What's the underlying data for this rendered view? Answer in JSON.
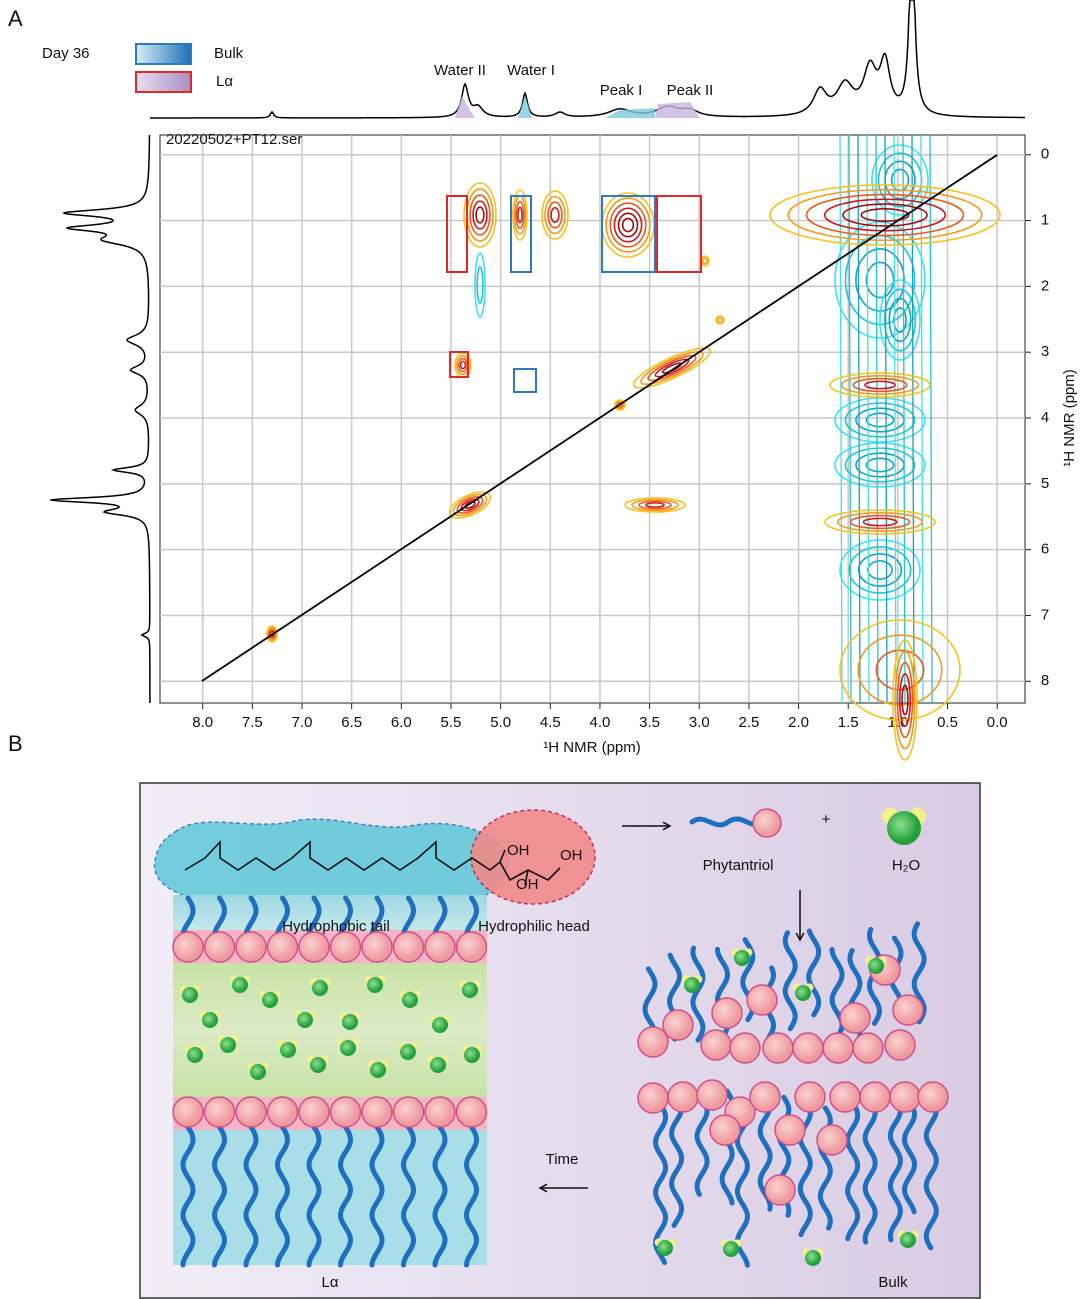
{
  "panel_labels": [
    "A",
    "B"
  ],
  "chart_data": {
    "type": "contour",
    "title": "20220502+PT12.ser",
    "x_label": "¹H NMR (ppm)",
    "y_label": "¹H NMR (ppm)",
    "legend": {
      "title": "Day 36",
      "items": [
        {
          "name": "Bulk",
          "color": "#2b7bc0"
        },
        {
          "name": "Lα",
          "color": "#e32626"
        }
      ]
    },
    "annotations": [
      "Water II",
      "Water I",
      "Peak I",
      "Peak II"
    ],
    "xlim": [
      8.43,
      -0.28
    ],
    "ylim": [
      -0.3,
      8.33
    ],
    "xticks": [
      {
        "value": 8,
        "label": "8.0"
      },
      7.5,
      {
        "value": 7,
        "label": "7.0"
      },
      6.5,
      {
        "value": 6,
        "label": "6.0"
      },
      5.5,
      {
        "value": 5,
        "label": "5.0"
      },
      4.5,
      {
        "value": 4,
        "label": "4.0"
      },
      3.5,
      {
        "value": 3,
        "label": "3.0"
      },
      2.5,
      {
        "value": 2,
        "label": "2.0"
      },
      1.5,
      {
        "value": 1,
        "label": "1.0"
      },
      0.5,
      {
        "value": 0,
        "label": "0.0"
      }
    ],
    "yticks": [
      0,
      1,
      2,
      3,
      4,
      5,
      6,
      7,
      8
    ],
    "grid": true
  },
  "diagram": {
    "groups": [
      "OH",
      "OH",
      "OH"
    ],
    "tail": "Hydrophobic tail",
    "head": "Hydrophilic head",
    "molecule": "Phytantriol",
    "plus": "+",
    "water": "H₂O",
    "time": "Time",
    "phases": [
      "Lα",
      "Bulk"
    ]
  }
}
